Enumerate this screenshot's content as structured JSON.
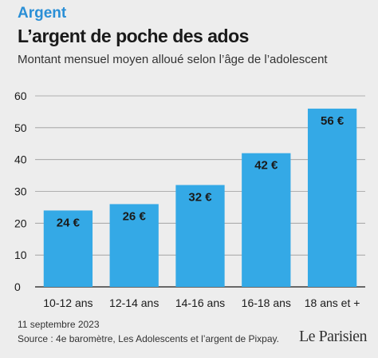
{
  "header": {
    "rubric": "Argent",
    "title": "L’argent de poche des ados",
    "subtitle": "Montant mensuel moyen alloué selon l’âge de l’adolescent"
  },
  "footer": {
    "date": "11 septembre 2023",
    "source": "Source : 4e baromètre, Les Adolescents et l’argent de Pixpay.",
    "logo": "Le Parisien"
  },
  "colors": {
    "bar": "#34a9e6",
    "grid": "#9a9a9a",
    "text": "#1a1a1a",
    "accent": "#2a8fd6"
  },
  "chart_data": {
    "type": "bar",
    "title": "L’argent de poche des ados",
    "subtitle": "Montant mensuel moyen alloué selon l’âge de l’adolescent",
    "categories": [
      "10-12 ans",
      "12-14 ans",
      "14-16 ans",
      "16-18 ans",
      "18 ans et +"
    ],
    "values": [
      24,
      26,
      32,
      42,
      56
    ],
    "data_labels": [
      "24 €",
      "26 €",
      "32 €",
      "42 €",
      "56 €"
    ],
    "ylim": [
      0,
      60
    ],
    "yticks": [
      0,
      10,
      20,
      30,
      40,
      50,
      60
    ],
    "grid": true,
    "xlabel": "",
    "ylabel": ""
  }
}
